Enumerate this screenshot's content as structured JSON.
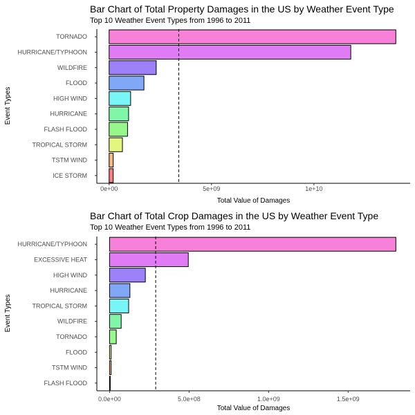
{
  "chart_data": [
    {
      "type": "bar",
      "orientation": "horizontal",
      "title": "Bar Chart of Total Property Damages in the US by Weather Event Type",
      "subtitle": "Top 10 Weather Event Types from 1996 to 2011",
      "xlabel": "Total Value of Damages",
      "ylabel": "Event Types",
      "categories": [
        "TORNADO",
        "HURRICANE/TYPHOON",
        "WILDFIRE",
        "FLOOD",
        "HIGH WIND",
        "HURRICANE",
        "FLASH FLOOD",
        "TROPICAL STORM",
        "TSTM WIND",
        "ICE STORM"
      ],
      "values": [
        14000000000,
        11800000000,
        2300000000,
        1700000000,
        1050000000,
        950000000,
        900000000,
        650000000,
        200000000,
        200000000
      ],
      "colors": [
        "#F781D8",
        "#E07BF5",
        "#9C80F7",
        "#80A8F7",
        "#78F5F7",
        "#80F7A8",
        "#96F78A",
        "#E3F77E",
        "#F7B780",
        "#F78080"
      ],
      "mean_line": 3400000000,
      "xlim": [
        -600000000,
        14700000000
      ],
      "xticks": [
        {
          "value": 0,
          "label": "0e+00"
        },
        {
          "value": 5000000000,
          "label": "5e+09"
        },
        {
          "value": 10000000000,
          "label": "1e+10"
        }
      ],
      "grid": false,
      "legend": "none"
    },
    {
      "type": "bar",
      "orientation": "horizontal",
      "title": "Bar Chart of Total Crop Damages in the US by Weather Event Type",
      "subtitle": "Top 10 Weather Event Types from 1996 to 2011",
      "xlabel": "Total Value of Damages",
      "ylabel": "Event Types",
      "categories": [
        "HURRICANE/TYPHOON",
        "EXCESSIVE HEAT",
        "HIGH WIND",
        "HURRICANE",
        "TROPICAL STORM",
        "WILDFIRE",
        "TORNADO",
        "FLOOD",
        "TSTM WIND",
        "FLASH FLOOD"
      ],
      "values": [
        1800000000,
        495000000,
        225000000,
        128000000,
        120000000,
        73000000,
        42000000,
        10000000,
        10000000,
        2000000
      ],
      "colors": [
        "#F781D8",
        "#E07BF5",
        "#9C80F7",
        "#80A8F7",
        "#78F5F7",
        "#80F7A8",
        "#96F78A",
        "#E3F77E",
        "#F7B780",
        "#F78080"
      ],
      "mean_line": 290000000,
      "xlim": [
        -80000000,
        1890000000
      ],
      "xticks": [
        {
          "value": 0,
          "label": "0.0e+00"
        },
        {
          "value": 500000000,
          "label": "5.0e+08"
        },
        {
          "value": 1000000000,
          "label": "1.0e+09"
        },
        {
          "value": 1500000000,
          "label": "1.5e+09"
        }
      ],
      "grid": false,
      "legend": "none"
    }
  ]
}
